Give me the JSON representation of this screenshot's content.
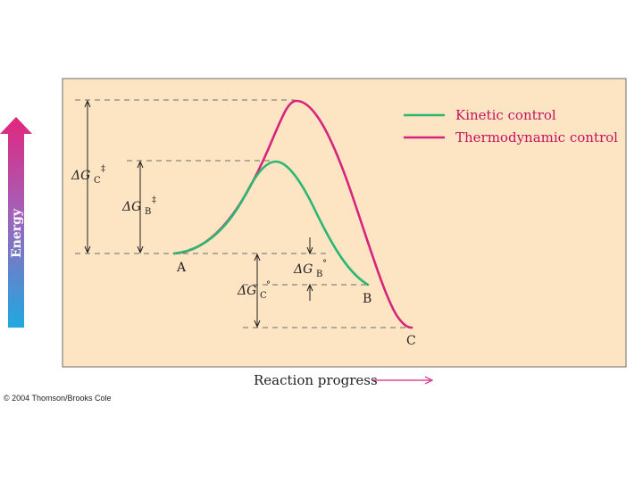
{
  "legend": {
    "kinetic": "Kinetic control",
    "thermodynamic": "Thermodynamic control"
  },
  "axis": {
    "y_label": "Energy",
    "x_label": "Reaction progress"
  },
  "points": {
    "a": "A",
    "b": "B",
    "c": "C"
  },
  "energy_labels": {
    "dgc_ts_base": "ΔG",
    "dgc_ts_sub": "C",
    "dgc_ts_sup": "‡",
    "dgb_ts_base": "ΔG",
    "dgb_ts_sub": "B",
    "dgb_ts_sup": "‡",
    "dgb_std_base": "ΔG",
    "dgb_std_sub": "B",
    "dgb_std_sup": "°",
    "dgc_std_base": "ΔG",
    "dgc_std_sub": "C",
    "dgc_std_sup": "°"
  },
  "credit": "© 2004 Thomson/Brooks Cole",
  "colors": {
    "panel_fill": "#fde4c2",
    "kinetic": "#2bb673",
    "thermodynamic": "#d6247e",
    "arrow_top": "#e0267d",
    "arrow_bottom": "#1fa9e0"
  }
}
